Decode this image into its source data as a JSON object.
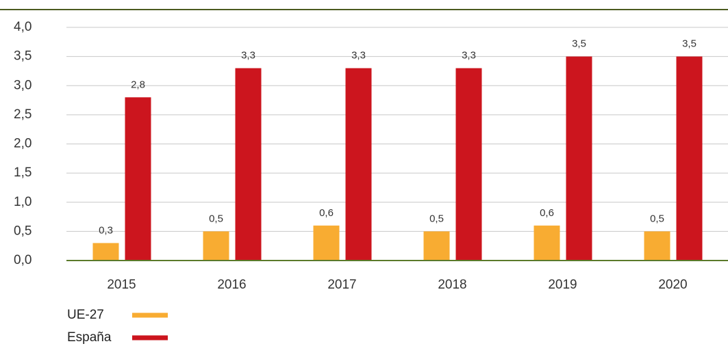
{
  "chart_data": {
    "type": "bar",
    "categories": [
      "2015",
      "2016",
      "2017",
      "2018",
      "2019",
      "2020"
    ],
    "series": [
      {
        "name": "UE-27",
        "color": "#f8ac32",
        "values": [
          0.3,
          0.5,
          0.6,
          0.5,
          0.6,
          0.5
        ],
        "value_labels": [
          "0,3",
          "0,5",
          "0,6",
          "0,5",
          "0,6",
          "0,5"
        ]
      },
      {
        "name": "España",
        "color": "#cc151e",
        "values": [
          2.8,
          3.3,
          3.3,
          3.3,
          3.5,
          3.5
        ],
        "value_labels": [
          "2,8",
          "3,3",
          "3,3",
          "3,3",
          "3,5",
          "3,5"
        ]
      }
    ],
    "ylim": [
      0,
      4
    ],
    "yticks": [
      {
        "value": 0,
        "label": "0,0"
      },
      {
        "value": 0.5,
        "label": "0,5"
      },
      {
        "value": 1,
        "label": "1,0"
      },
      {
        "value": 1.5,
        "label": "1,5"
      },
      {
        "value": 2,
        "label": "2,0"
      },
      {
        "value": 2.5,
        "label": "2,5"
      },
      {
        "value": 3,
        "label": "3,0"
      },
      {
        "value": 3.5,
        "label": "3,5"
      },
      {
        "value": 4,
        "label": "4,0"
      }
    ],
    "grid": true,
    "legend": "bottom-left"
  }
}
